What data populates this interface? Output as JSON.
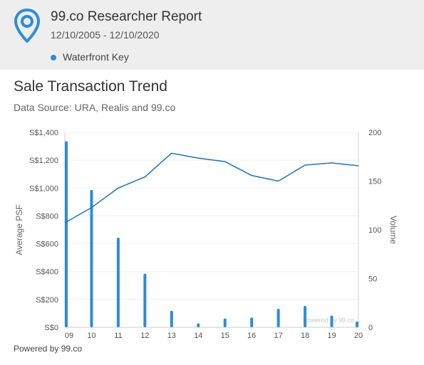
{
  "header": {
    "title": "99.co Researcher Report",
    "date_range": "12/10/2005 - 12/10/2020",
    "legend_label": "Waterfront Key",
    "logo_icon": "location-pin-icon"
  },
  "colors": {
    "accent": "#2f8bd8",
    "line": "#1f73b7",
    "header_bg": "#eeeeee"
  },
  "chart_data": {
    "type": "bar",
    "title": "Sale Transaction Trend",
    "subtitle": "Data Source: URA, Realis and 99.co",
    "categories": [
      "09",
      "10",
      "11",
      "12",
      "13",
      "14",
      "15",
      "16",
      "17",
      "18",
      "19",
      "20"
    ],
    "series": [
      {
        "name": "Volume",
        "type": "bar",
        "axis": "right",
        "values": [
          191,
          141,
          92,
          55,
          17,
          4,
          9,
          10,
          19,
          22,
          12,
          6
        ]
      },
      {
        "name": "Average PSF",
        "type": "line",
        "axis": "left",
        "values": [
          750,
          860,
          1000,
          1080,
          1250,
          1215,
          1190,
          1090,
          1050,
          1165,
          1180,
          1160
        ]
      }
    ],
    "ylabel_left": "Average PSF",
    "ylabel_right": "Volume",
    "y_left_ticks": [
      "S$0",
      "S$200",
      "S$400",
      "S$600",
      "S$800",
      "S$1,000",
      "S$1,200",
      "S$1,400"
    ],
    "y_left_range": [
      0,
      1400
    ],
    "y_right_ticks": [
      "0",
      "50",
      "100",
      "150",
      "200"
    ],
    "y_right_range": [
      0,
      200
    ],
    "grid": true,
    "watermark": "Powered by 99.co"
  },
  "footer": {
    "powered_by": "Powered by 99.co"
  }
}
